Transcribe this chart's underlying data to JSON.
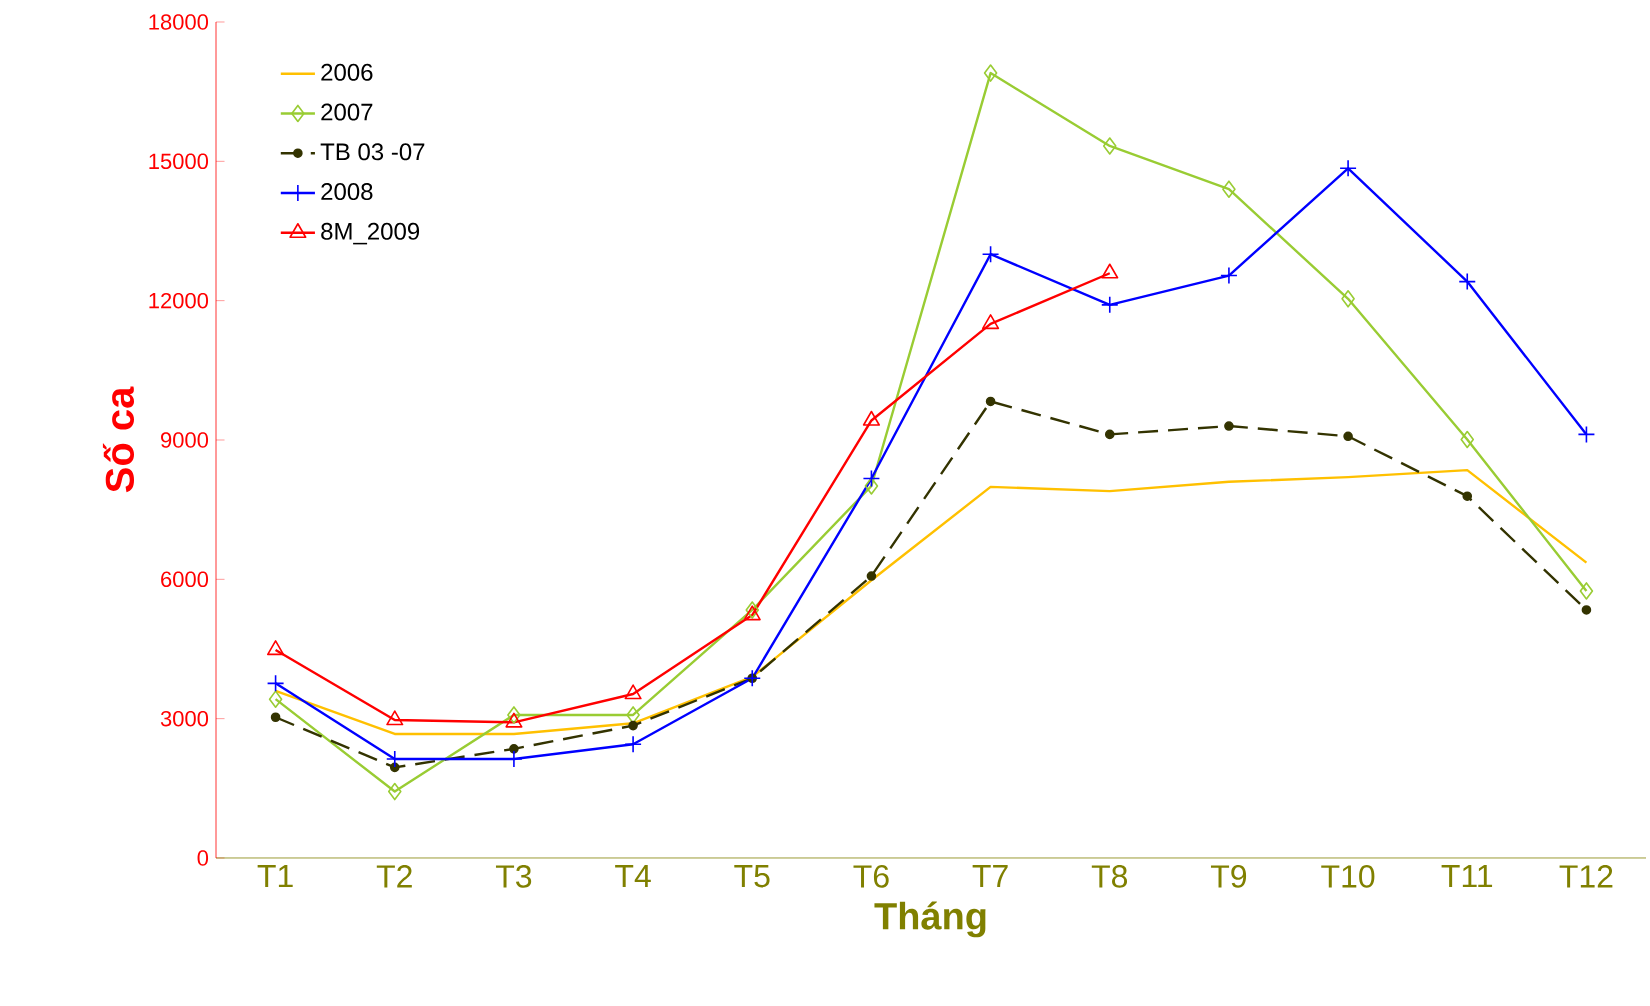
{
  "chart_data": {
    "type": "line",
    "xlabel": "Tháng",
    "ylabel": "Số ca",
    "categories": [
      "T1",
      "T2",
      "T3",
      "T4",
      "T5",
      "T6",
      "T7",
      "T8",
      "T9",
      "T10",
      "T11",
      "T12"
    ],
    "series": [
      {
        "name": "2006",
        "color": "#ffc000",
        "marker": "none",
        "line_style": "solid",
        "values": [
          3600,
          2670,
          2670,
          2900,
          3900,
          5980,
          7990,
          7900,
          8100,
          8200,
          8350,
          6360
        ]
      },
      {
        "name": "2007",
        "color": "#99cc33",
        "marker": "diamond",
        "line_style": "solid",
        "values": [
          3420,
          1430,
          3080,
          3080,
          5340,
          8010,
          16900,
          15330,
          14400,
          12040,
          9010,
          5750
        ]
      },
      {
        "name": "TB 03 -07",
        "color": "#333300",
        "marker": "circle",
        "line_style": "dashed",
        "values": [
          3030,
          1950,
          2350,
          2850,
          3870,
          6070,
          9830,
          9120,
          9300,
          9080,
          7790,
          5340
        ]
      },
      {
        "name": "2008",
        "color": "#0000ff",
        "marker": "cross",
        "line_style": "solid",
        "values": [
          3760,
          2130,
          2130,
          2450,
          3870,
          8170,
          13000,
          11910,
          12540,
          14850,
          12410,
          9120
        ]
      },
      {
        "name": "8M_2009",
        "color": "#ff0000",
        "marker": "triangle",
        "line_style": "solid",
        "values": [
          4480,
          2970,
          2920,
          3530,
          5230,
          9420,
          11500,
          12590,
          null,
          null,
          null,
          null
        ]
      }
    ],
    "ylim": [
      0,
      18000
    ],
    "yticks": [
      0,
      3000,
      6000,
      9000,
      12000,
      15000,
      18000
    ],
    "grid": false,
    "legend": "top left"
  }
}
